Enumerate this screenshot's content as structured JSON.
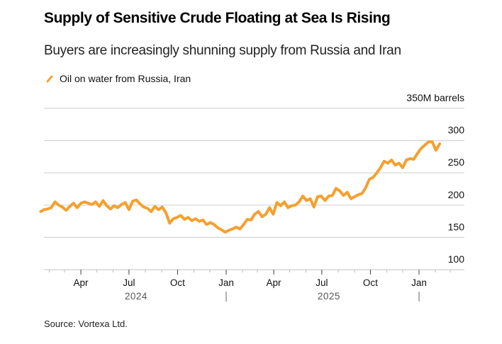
{
  "chart_data": {
    "type": "line",
    "title": "Supply of Sensitive Crude Floating at Sea Is Rising",
    "subtitle": "Buyers are increasingly shunning supply from Russia and Iran",
    "ylabel": "",
    "y_unit_label": "350M barrels",
    "ylim": [
      100,
      350
    ],
    "yticks": [
      100,
      150,
      200,
      250,
      300,
      350
    ],
    "ytick_labels": [
      "100",
      "150",
      "200",
      "250",
      "300",
      "350M barrels"
    ],
    "xlim": [
      "2024-01-13",
      "2026-02-28"
    ],
    "xticks": [
      {
        "date": "2024-04-01",
        "label": "Apr"
      },
      {
        "date": "2024-07-01",
        "label": "Jul"
      },
      {
        "date": "2024-10-01",
        "label": "Oct"
      },
      {
        "date": "2025-01-01",
        "label": "Jan"
      },
      {
        "date": "2025-04-01",
        "label": "Apr"
      },
      {
        "date": "2025-07-01",
        "label": "Jul"
      },
      {
        "date": "2025-10-01",
        "label": "Oct"
      },
      {
        "date": "2026-01-01",
        "label": "Jan"
      }
    ],
    "year_labels": [
      {
        "label": "2024",
        "center": "2024-07-01"
      },
      {
        "label": "2025",
        "center": "2025-07-01"
      }
    ],
    "year_separators": [
      "2025-01-01",
      "2026-01-01"
    ],
    "grid": true,
    "legend_position": "top-left",
    "series": [
      {
        "name": "Oil on water from Russia, Iran",
        "color": "#f5a02f",
        "x": [
          "2024-01-16",
          "2024-01-22",
          "2024-01-29",
          "2024-02-05",
          "2024-02-12",
          "2024-02-19",
          "2024-02-26",
          "2024-03-04",
          "2024-03-11",
          "2024-03-18",
          "2024-03-25",
          "2024-04-01",
          "2024-04-08",
          "2024-04-15",
          "2024-04-22",
          "2024-04-29",
          "2024-05-06",
          "2024-05-13",
          "2024-05-20",
          "2024-05-27",
          "2024-06-03",
          "2024-06-10",
          "2024-06-17",
          "2024-06-24",
          "2024-07-01",
          "2024-07-08",
          "2024-07-15",
          "2024-07-22",
          "2024-07-29",
          "2024-08-05",
          "2024-08-12",
          "2024-08-19",
          "2024-08-26",
          "2024-09-02",
          "2024-09-09",
          "2024-09-16",
          "2024-09-23",
          "2024-09-30",
          "2024-10-07",
          "2024-10-14",
          "2024-10-21",
          "2024-10-28",
          "2024-11-04",
          "2024-11-11",
          "2024-11-18",
          "2024-11-25",
          "2024-12-02",
          "2024-12-09",
          "2024-12-16",
          "2024-12-23",
          "2024-12-30",
          "2025-01-06",
          "2025-01-13",
          "2025-01-20",
          "2025-01-27",
          "2025-02-03",
          "2025-02-10",
          "2025-02-17",
          "2025-02-24",
          "2025-03-03",
          "2025-03-10",
          "2025-03-17",
          "2025-03-24",
          "2025-03-31",
          "2025-04-07",
          "2025-04-14",
          "2025-04-21",
          "2025-04-28",
          "2025-05-05",
          "2025-05-12",
          "2025-05-19",
          "2025-05-26",
          "2025-06-02",
          "2025-06-09",
          "2025-06-16",
          "2025-06-23",
          "2025-06-30",
          "2025-07-07",
          "2025-07-14",
          "2025-07-21",
          "2025-07-28",
          "2025-08-04",
          "2025-08-11",
          "2025-08-18",
          "2025-08-25",
          "2025-09-01",
          "2025-09-08",
          "2025-09-15",
          "2025-09-22",
          "2025-09-29",
          "2025-10-06",
          "2025-10-13",
          "2025-10-20",
          "2025-10-27",
          "2025-11-03",
          "2025-11-10",
          "2025-11-17",
          "2025-11-24",
          "2025-12-01",
          "2025-12-08",
          "2025-12-15",
          "2025-12-22",
          "2025-12-29",
          "2026-01-05",
          "2026-01-12",
          "2026-01-19",
          "2026-01-26",
          "2026-02-02",
          "2026-02-09"
        ],
        "values": [
          190,
          193,
          194,
          196,
          205,
          200,
          197,
          192,
          198,
          203,
          196,
          203,
          205,
          203,
          201,
          205,
          198,
          207,
          199,
          194,
          199,
          196,
          201,
          204,
          193,
          206,
          208,
          202,
          197,
          195,
          190,
          198,
          193,
          197,
          188,
          172,
          179,
          181,
          184,
          178,
          181,
          176,
          179,
          175,
          177,
          170,
          173,
          170,
          165,
          162,
          158,
          161,
          163,
          166,
          163,
          170,
          178,
          177,
          186,
          190,
          182,
          186,
          196,
          186,
          204,
          199,
          205,
          196,
          199,
          200,
          205,
          214,
          207,
          210,
          197,
          213,
          214,
          207,
          214,
          215,
          226,
          222,
          215,
          220,
          210,
          213,
          216,
          218,
          227,
          240,
          243,
          250,
          258,
          268,
          265,
          270,
          262,
          265,
          258,
          270,
          272,
          271,
          280,
          288,
          293,
          298,
          298,
          285,
          295
        ]
      }
    ],
    "source": "Source: Vortexa Ltd."
  },
  "legend": {
    "label": "Oil on water from Russia, Iran",
    "color": "#f5a02f"
  },
  "colors": {
    "line": "#f5a02f",
    "grid": "#d4d4d4",
    "text": "#111111"
  }
}
